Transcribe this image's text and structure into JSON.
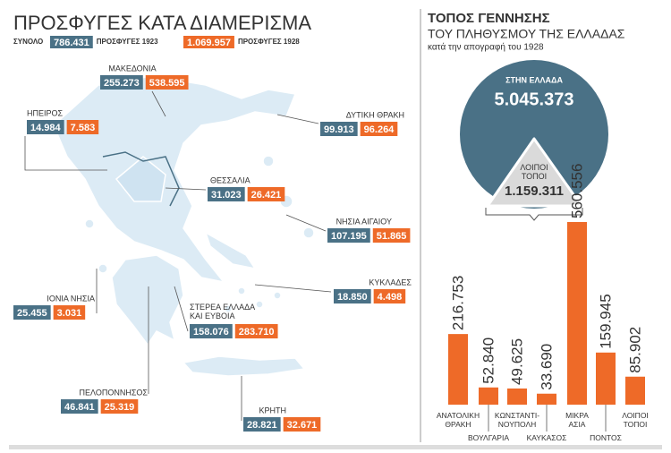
{
  "left": {
    "title": "ΠΡΟΣΦΥΓΕΣ ΚΑΤΑ ΔΙΑΜΕΡΙΣΜΑ",
    "legend": {
      "total_label": "ΣΥΝΟΛΟ",
      "total_1923": "786.431",
      "label_1923": "ΠΡΟΣΦΥΓΕΣ 1923",
      "total_1928": "1.069.957",
      "label_1928": "ΠΡΟΣΦΥΓΕΣ 1928"
    },
    "regions": [
      {
        "name": "ΜΑΚΕΔΟΝΙΑ",
        "v1923": "255.273",
        "v1928": "538.595"
      },
      {
        "name": "ΗΠΕΙΡΟΣ",
        "v1923": "14.984",
        "v1928": "7.583"
      },
      {
        "name": "ΔΥΤΙΚΗ ΘΡΑΚΗ",
        "v1923": "99.913",
        "v1928": "96.264"
      },
      {
        "name": "ΘΕΣΣΑΛΙΑ",
        "v1923": "31.023",
        "v1928": "26.421"
      },
      {
        "name": "ΝΗΣΙΑ ΑΙΓΑΙΟΥ",
        "v1923": "107.195",
        "v1928": "51.865"
      },
      {
        "name": "ΚΥΚΛΑΔΕΣ",
        "v1923": "18.850",
        "v1928": "4.498"
      },
      {
        "name": "ΙΟΝΙΑ ΝΗΣΙΑ",
        "v1923": "25.455",
        "v1928": "3.031"
      },
      {
        "name": "ΣΤΕΡΕΑ ΕΛΛΑΔΑ ΚΑΙ ΕΥΒΟΙΑ",
        "v1923": "158.076",
        "v1928": "283.710"
      },
      {
        "name": "ΠΕΛΟΠΟΝΝΗΣΟΣ",
        "v1923": "46.841",
        "v1928": "25.319"
      },
      {
        "name": "ΚΡΗΤΗ",
        "v1923": "28.821",
        "v1928": "32.671"
      }
    ]
  },
  "right": {
    "title": "ΤΟΠΟΣ ΓΕΝΝΗΣΗΣ",
    "subtitle": "ΤΟΥ ΠΛΗΘΥΣΜΟΥ ΤΗΣ ΕΛΛΑΔΑΣ",
    "note": "κατά την απογραφή του 1928",
    "in_greece_label": "ΣΤΗΝ ΕΛΛΑΔΑ",
    "in_greece_value": "5.045.373",
    "elsewhere_label": "ΛΟΙΠΟΙ ΤΟΠΟΙ",
    "elsewhere_value": "1.159.311"
  },
  "chart_data": {
    "type": "bar",
    "categories": [
      "ΑΝΑΤΟΛΙΚΗ ΘΡΑΚΗ",
      "ΒΟΥΛΓΑΡΙΑ",
      "ΚΩΝΣΤΑΝΤΙ- ΝΟΥΠΟΛΗ",
      "ΚΑΥΚΑΣΟΣ",
      "ΜΙΚΡΑ ΑΣΙΑ",
      "ΠΟΝΤΟΣ",
      "ΛΟΙΠΟΙ ΤΟΠΟΙ"
    ],
    "values": [
      216753,
      52840,
      49625,
      33690,
      560556,
      159945,
      85902
    ],
    "value_labels": [
      "216.753",
      "52.840",
      "49.625",
      "33.690",
      "560.556",
      "159.945",
      "85.902"
    ],
    "color": "#ee6a28"
  }
}
